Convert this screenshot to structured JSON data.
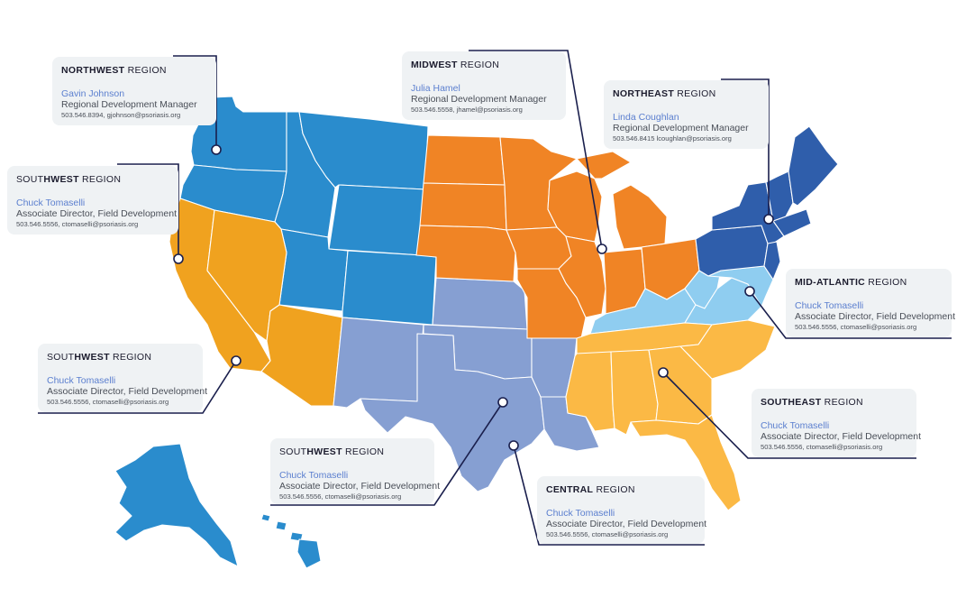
{
  "colors": {
    "northwest": "#2a8ccd",
    "midwest": "#f08425",
    "northeast": "#2f5eab",
    "mid_atlantic": "#8fcdf0",
    "southeast": "#fbb945",
    "central": "#869fd2",
    "southwest": "#f0a21f",
    "card_bg": "#eff2f4",
    "line": "#1a1f4d",
    "name": "#5b7fcf"
  },
  "regions": {
    "northwest": {
      "title_bold": "NORTHWEST",
      "title_rest": " REGION",
      "name": "Gavin Johnson",
      "role": "Regional Development Manager",
      "contact": "503.546.8394, gjohnson@psoriasis.org"
    },
    "midwest": {
      "title_bold": "MIDWEST",
      "title_rest": " REGION",
      "name": "Julia Hamel",
      "role": "Regional Development Manager",
      "contact": "503.546.5558, jhamel@psoriasis.org"
    },
    "northeast": {
      "title_bold": "NORTHEAST",
      "title_rest": " REGION",
      "name": "Linda Coughlan",
      "role": "Regional Development Manager",
      "contact": "503.546.8415 lcoughlan@psoriasis.org"
    },
    "southwest_1": {
      "title_pre": "SOUT",
      "title_bold": "HWEST",
      "title_rest": " REGION",
      "name": "Chuck Tomaselli",
      "role": "Associate Director, Field Development",
      "contact": "503.546.5556, ctomaselli@psoriasis.org"
    },
    "mid_atlantic": {
      "title_bold": "MID-ATLANTIC",
      "title_rest": " REGION",
      "name": "Chuck Tomaselli",
      "role": "Associate Director, Field Development",
      "contact": "503.546.5556, ctomaselli@psoriasis.org"
    },
    "southwest_2": {
      "title_pre": "SOUT",
      "title_bold": "HWEST",
      "title_rest": " REGION",
      "name": "Chuck Tomaselli",
      "role": "Associate Director, Field Development",
      "contact": "503.546.5556, ctomaselli@psoriasis.org"
    },
    "southeast": {
      "title_bold": "SOUTHEAST",
      "title_rest": " REGION",
      "name": "Chuck Tomaselli",
      "role": "Associate Director, Field Development",
      "contact": "503.546.5556, ctomaselli@psoriasis.org"
    },
    "southwest_3": {
      "title_pre": "SOUT",
      "title_bold": "HWEST",
      "title_rest": " REGION",
      "name": "Chuck Tomaselli",
      "role": "Associate Director, Field Development",
      "contact": "503.546.5556, ctomaselli@psoriasis.org"
    },
    "central": {
      "title_bold": "CENTRAL",
      "title_rest": " REGION",
      "name": "Chuck Tomaselli",
      "role": "Associate Director, Field Development",
      "contact": "503.546.5556, ctomaselli@psoriasis.org"
    }
  }
}
